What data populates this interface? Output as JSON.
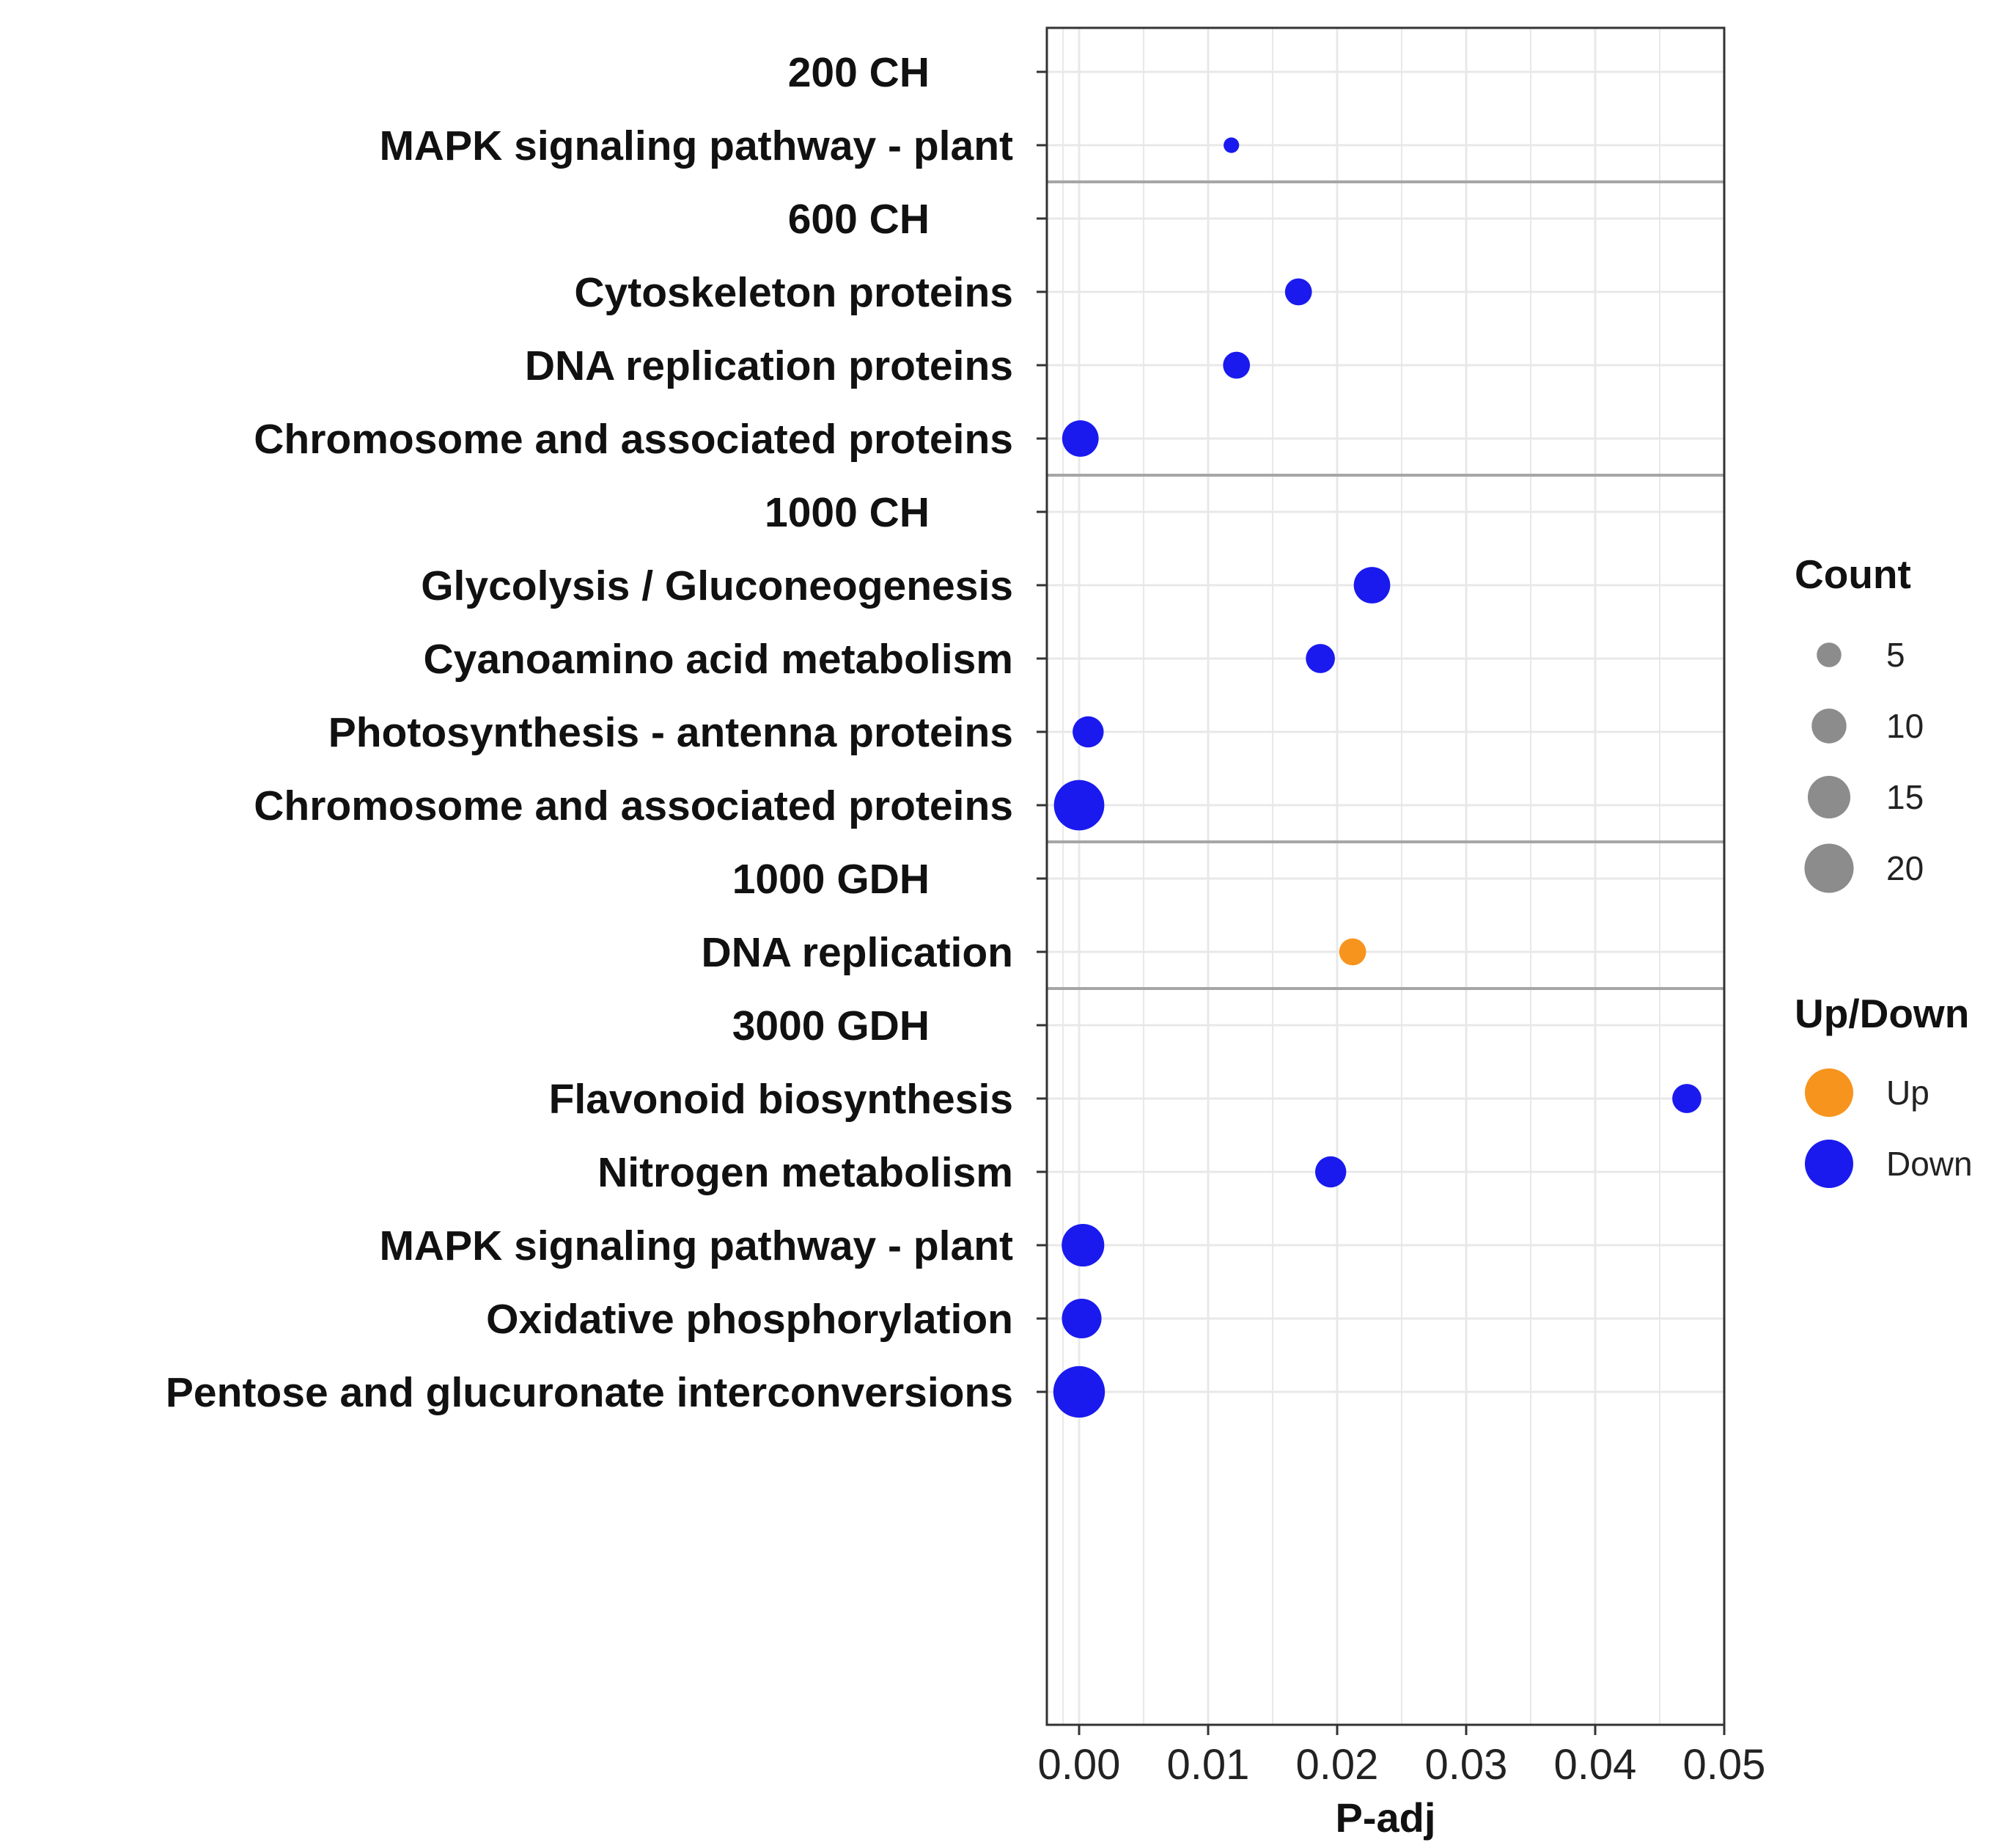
{
  "chart_data": {
    "type": "scatter",
    "xlabel": "P-adj",
    "xlim": [
      -0.0025,
      0.05
    ],
    "xticks": [
      0,
      0.01,
      0.02,
      0.03,
      0.04,
      0.05
    ],
    "xtick_labels": [
      "0.00",
      "0.01",
      "0.02",
      "0.03",
      "0.04",
      "0.05"
    ],
    "groups": [
      {
        "label": "200 CH",
        "rows": [
          {
            "label": "MAPK signaling pathway - plant",
            "padj": 0.0118,
            "count": 2,
            "direction": "Down"
          }
        ]
      },
      {
        "label": "600 CH",
        "rows": [
          {
            "label": "Cytoskeleton proteins",
            "padj": 0.017,
            "count": 6,
            "direction": "Down"
          },
          {
            "label": "DNA replication proteins",
            "padj": 0.0122,
            "count": 6,
            "direction": "Down"
          },
          {
            "label": "Chromosome and associated proteins",
            "padj": 0.0001,
            "count": 11,
            "direction": "Down"
          }
        ]
      },
      {
        "label": "1000 CH",
        "rows": [
          {
            "label": "Glycolysis / Gluconeogenesis",
            "padj": 0.0227,
            "count": 11,
            "direction": "Down"
          },
          {
            "label": "Cyanoamino acid metabolism",
            "padj": 0.0187,
            "count": 7,
            "direction": "Down"
          },
          {
            "label": "Photosynthesis - antenna proteins",
            "padj": 0.0007,
            "count": 8,
            "direction": "Down"
          },
          {
            "label": "Chromosome and associated proteins",
            "padj": 0.0,
            "count": 21,
            "direction": "Down"
          }
        ]
      },
      {
        "label": "1000 GDH",
        "rows": [
          {
            "label": "DNA replication",
            "padj": 0.0212,
            "count": 6,
            "direction": "Up"
          }
        ]
      },
      {
        "label": "3000 GDH",
        "rows": [
          {
            "label": "Flavonoid biosynthesis",
            "padj": 0.0471,
            "count": 7,
            "direction": "Down"
          },
          {
            "label": "Nitrogen metabolism",
            "padj": 0.0195,
            "count": 8,
            "direction": "Down"
          },
          {
            "label": "MAPK signaling pathway - plant",
            "padj": 0.0003,
            "count": 15,
            "direction": "Down"
          },
          {
            "label": "Oxidative phosphorylation",
            "padj": 0.0002,
            "count": 13,
            "direction": "Down"
          },
          {
            "label": "Pentose and glucuronate interconversions",
            "padj": 0.0,
            "count": 22,
            "direction": "Down"
          }
        ]
      }
    ],
    "legend_count": {
      "title": "Count",
      "values": [
        5,
        10,
        15,
        20
      ]
    },
    "legend_direction": {
      "title": "Up/Down",
      "entries": [
        "Up",
        "Down"
      ]
    },
    "colors": {
      "Up": "#f7941d",
      "Down": "#1a1aee",
      "legend_size": "#8c8c8c",
      "grid": "#e8e8e8",
      "separator": "#a6a6a6",
      "border": "#333333"
    }
  }
}
